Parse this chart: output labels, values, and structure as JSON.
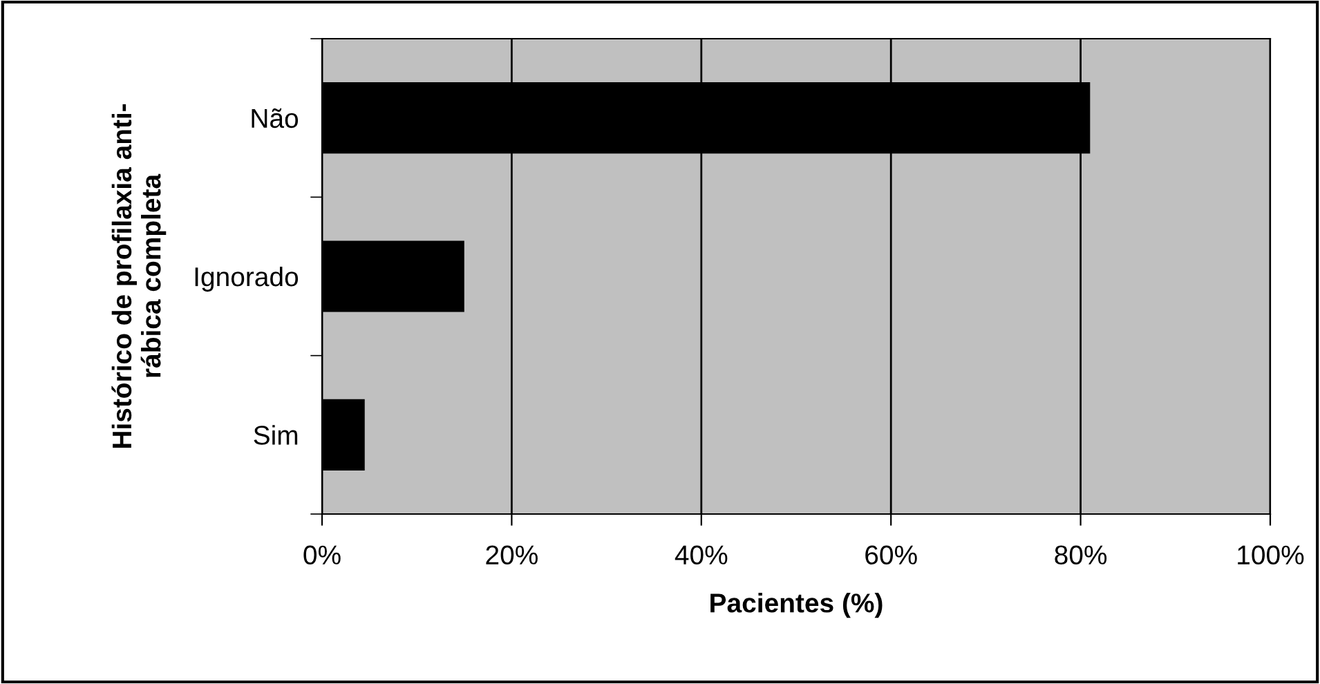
{
  "chart_data": {
    "type": "bar",
    "orientation": "horizontal",
    "categories": [
      "Não",
      "Ignorado",
      "Sim"
    ],
    "values": [
      81,
      15,
      4.5
    ],
    "color": "#000000",
    "xlabel": "Pacientes (%)",
    "ylabel": "Histórico de profilaxia anti-\nrábica completa",
    "xlim": [
      0,
      100
    ],
    "xticks": [
      {
        "value": 0,
        "label": "0%"
      },
      {
        "value": 20,
        "label": "20%"
      },
      {
        "value": 40,
        "label": "40%"
      },
      {
        "value": 60,
        "label": "60%"
      },
      {
        "value": 80,
        "label": "80%"
      },
      {
        "value": 100,
        "label": "100%"
      }
    ],
    "grid": "x",
    "legend": false
  }
}
